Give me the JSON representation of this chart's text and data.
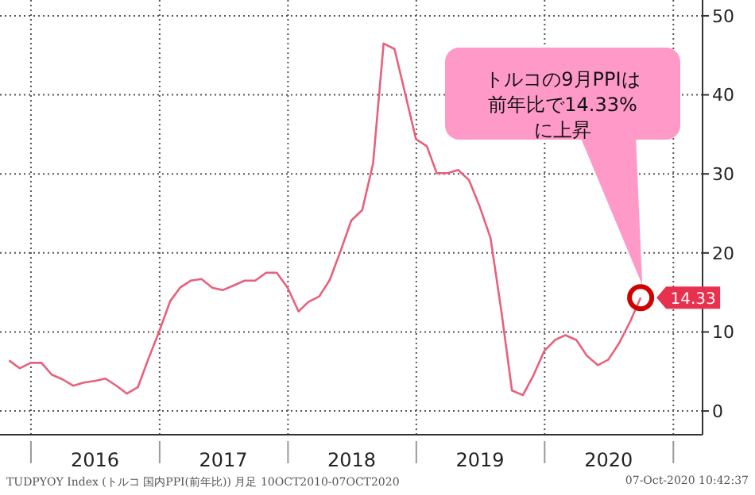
{
  "chart_data": {
    "type": "line",
    "x": [
      "2015-10-31",
      "2015-11-30",
      "2015-12-31",
      "2016-01-31",
      "2016-02-29",
      "2016-03-31",
      "2016-04-30",
      "2016-05-31",
      "2016-06-30",
      "2016-07-31",
      "2016-08-31",
      "2016-09-30",
      "2016-10-31",
      "2016-11-30",
      "2016-12-31",
      "2017-01-31",
      "2017-02-28",
      "2017-03-31",
      "2017-04-30",
      "2017-05-31",
      "2017-06-30",
      "2017-07-31",
      "2017-08-31",
      "2017-09-30",
      "2017-10-31",
      "2017-11-30",
      "2017-12-31",
      "2018-01-31",
      "2018-02-28",
      "2018-03-31",
      "2018-04-30",
      "2018-05-31",
      "2018-06-30",
      "2018-07-31",
      "2018-08-31",
      "2018-09-30",
      "2018-10-31",
      "2018-11-30",
      "2018-12-31",
      "2019-01-31",
      "2019-02-28",
      "2019-03-31",
      "2019-04-30",
      "2019-05-31",
      "2019-06-30",
      "2019-07-31",
      "2019-08-31",
      "2019-09-30",
      "2019-10-31",
      "2019-11-30",
      "2019-12-31",
      "2020-01-31",
      "2020-02-29",
      "2020-03-31",
      "2020-04-30",
      "2020-05-31",
      "2020-06-30",
      "2020-07-31",
      "2020-08-31",
      "2020-09-30"
    ],
    "series": [
      {
        "color": "#e8607a",
        "values": [
          6.4,
          5.4,
          6.1,
          6.1,
          4.6,
          4.0,
          3.2,
          3.6,
          3.8,
          4.1,
          3.2,
          2.2,
          3.0,
          6.6,
          10.1,
          13.9,
          15.6,
          16.5,
          16.7,
          15.6,
          15.3,
          15.9,
          16.5,
          16.5,
          17.5,
          17.5,
          15.6,
          12.6,
          13.8,
          14.5,
          16.6,
          20.3,
          24.1,
          25.4,
          31.3,
          46.5,
          45.8,
          40.2,
          34.4,
          33.5,
          30.1,
          30.1,
          30.5,
          29.2,
          25.9,
          21.9,
          12.6,
          2.6,
          2.0,
          4.5,
          7.6,
          9.0,
          9.6,
          9.0,
          7.0,
          5.8,
          6.5,
          8.6,
          11.3,
          14.33
        ],
        "value_labels": [
          null,
          null,
          null,
          null,
          null,
          null,
          null,
          null,
          null,
          null,
          null,
          null,
          null,
          null,
          null,
          null,
          null,
          null,
          null,
          null,
          null,
          null,
          null,
          null,
          null,
          null,
          null,
          null,
          null,
          null,
          null,
          null,
          null,
          null,
          null,
          null,
          null,
          null,
          null,
          null,
          null,
          null,
          null,
          null,
          null,
          null,
          null,
          null,
          null,
          null,
          null,
          null,
          null,
          null,
          null,
          null,
          null,
          null,
          null,
          "14.33"
        ]
      }
    ],
    "xlim": [
      "2015-10-05",
      "2021-03-25"
    ],
    "xticks": [
      {
        "value": "2016-01-01",
        "label": null
      },
      {
        "value": "2016-07-01",
        "label": "2016"
      },
      {
        "value": "2017-01-01",
        "label": null
      },
      {
        "value": "2017-07-01",
        "label": "2017"
      },
      {
        "value": "2018-01-01",
        "label": null
      },
      {
        "value": "2018-07-01",
        "label": "2018"
      },
      {
        "value": "2019-01-01",
        "label": null
      },
      {
        "value": "2019-07-01",
        "label": "2019"
      },
      {
        "value": "2020-01-01",
        "label": null
      },
      {
        "value": "2020-07-01",
        "label": "2020"
      },
      {
        "value": "2021-01-01",
        "label": null
      }
    ],
    "ylim": [
      -3,
      52
    ],
    "yticks": [
      0,
      10,
      20,
      30,
      40,
      50
    ],
    "grid": true,
    "legend": false,
    "marker": "none",
    "annotations": [
      {
        "text": "トルコの9月PPIは前年比で14.33%に上昇",
        "x": "2020-09-30",
        "y": 14.33
      },
      "TUDPYOY Index (トルコ 国内PPI(前年比)) 月足 10OCT2010-07OCT2020",
      "07-Oct-2020 10:42:37"
    ]
  }
}
